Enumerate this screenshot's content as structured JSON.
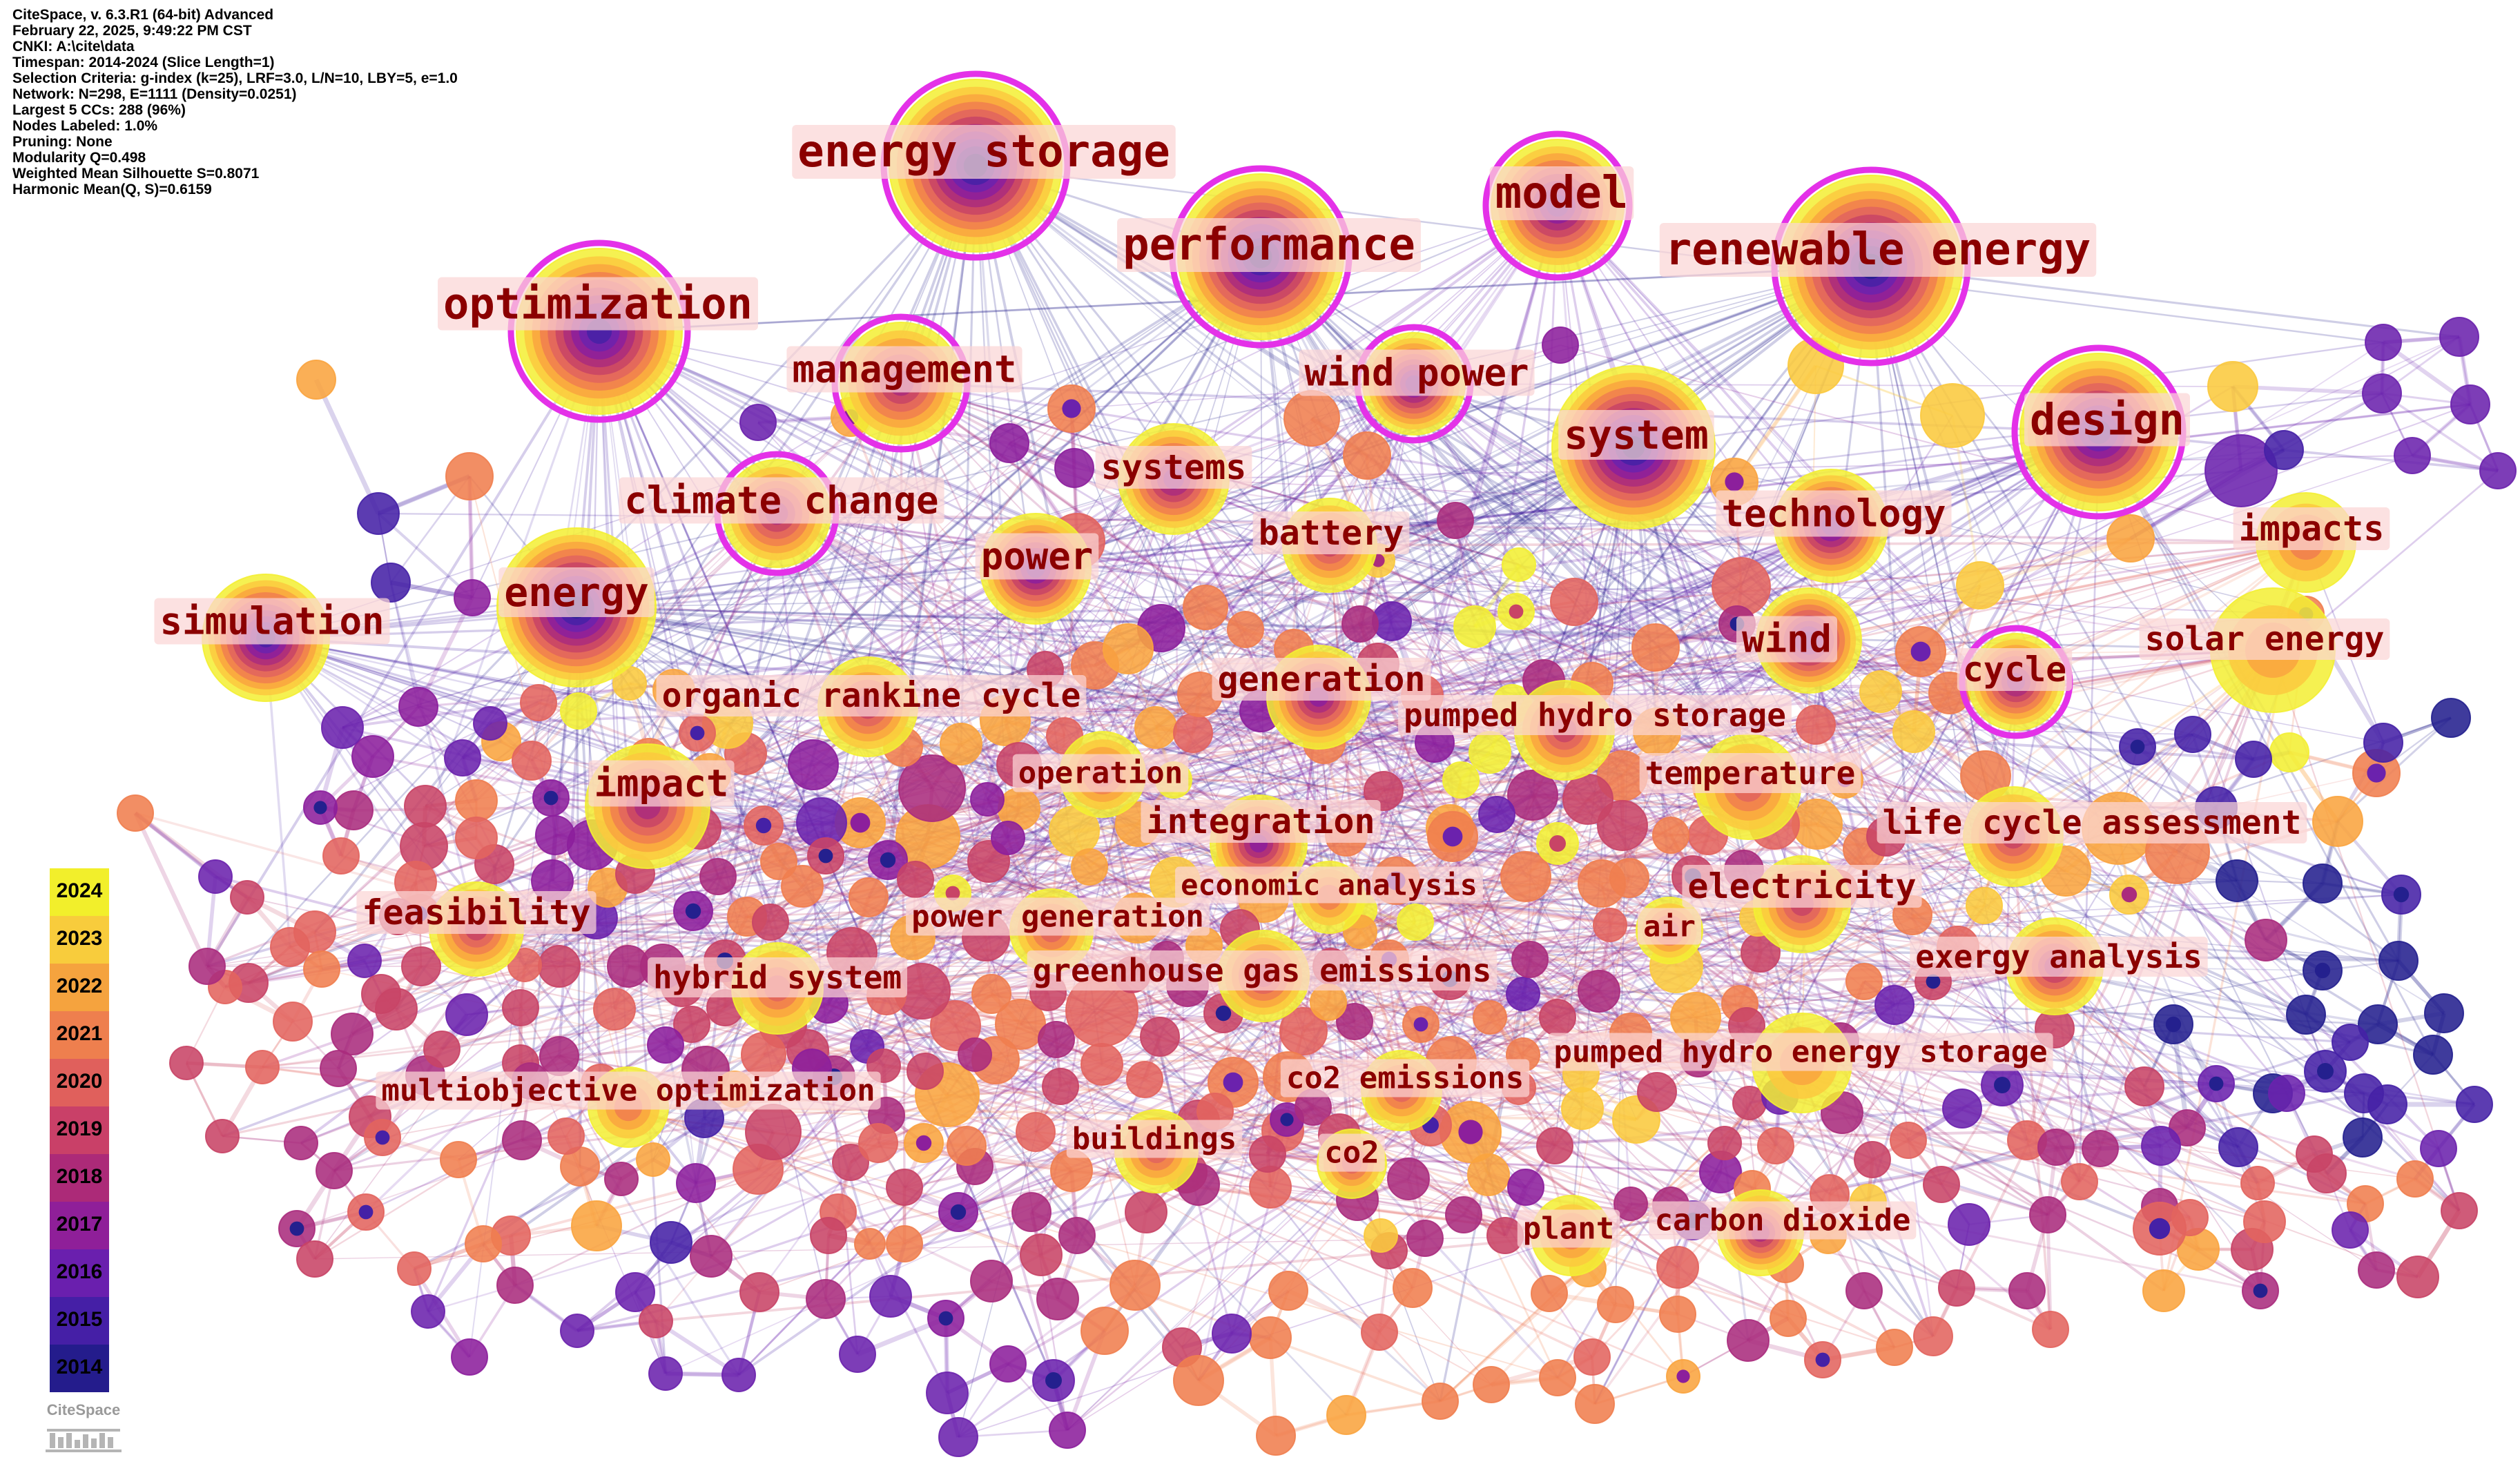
{
  "info_lines": [
    "CiteSpace, v. 6.3.R1 (64-bit) Advanced",
    "February 22, 2025, 9:49:22 PM CST",
    "CNKI: A:\\cite\\data",
    "Timespan: 2014-2024 (Slice Length=1)",
    "Selection Criteria: g-index (k=25), LRF=3.0, L/N=10, LBY=5, e=1.0",
    "Network: N=298, E=1111 (Density=0.0251)",
    "Largest 5 CCs: 288 (96%)",
    "Nodes Labeled: 1.0%",
    "Pruning: None",
    "Modularity Q=0.498",
    "Weighted Mean Silhouette S=0.8071",
    "Harmonic Mean(Q, S)=0.6159"
  ],
  "legend": {
    "years": [
      "2024",
      "2023",
      "2022",
      "2021",
      "2020",
      "2019",
      "2018",
      "2017",
      "2016",
      "2015",
      "2014"
    ],
    "colors": [
      "#f2ef2b",
      "#f8cc3c",
      "#f5a33e",
      "#ee7f4e",
      "#e0605c",
      "#c94068",
      "#ac2a78",
      "#8f1f99",
      "#6a1fae",
      "#451fa6",
      "#241c8c"
    ]
  },
  "logo_text": "CiteSpace",
  "network": {
    "keywords": [
      {
        "term": "energy storage",
        "year": 2014,
        "freq": 100,
        "burst": true
      },
      {
        "term": "performance",
        "year": 2014,
        "freq": 90,
        "burst": true
      },
      {
        "term": "model",
        "year": 2016,
        "freq": 40,
        "burst": true
      },
      {
        "term": "renewable energy",
        "year": 2014,
        "freq": 95,
        "burst": true
      },
      {
        "term": "optimization",
        "year": 2015,
        "freq": 80,
        "burst": true
      },
      {
        "term": "management",
        "year": 2018,
        "freq": 45,
        "burst": true
      },
      {
        "term": "wind power",
        "year": 2016,
        "freq": 30,
        "burst": true
      },
      {
        "term": "system",
        "year": 2014,
        "freq": 80,
        "burst": false
      },
      {
        "term": "design",
        "year": 2015,
        "freq": 75,
        "burst": true
      },
      {
        "term": "systems",
        "year": 2017,
        "freq": 40,
        "burst": false
      },
      {
        "term": "climate change",
        "year": 2018,
        "freq": 40,
        "burst": true
      },
      {
        "term": "technology",
        "year": 2016,
        "freq": 50,
        "burst": false
      },
      {
        "term": "battery",
        "year": 2019,
        "freq": 30,
        "burst": false
      },
      {
        "term": "power",
        "year": 2016,
        "freq": 45,
        "burst": false
      },
      {
        "term": "impacts",
        "year": 2021,
        "freq": 25,
        "burst": false
      },
      {
        "term": "energy",
        "year": 2014,
        "freq": 75,
        "burst": false
      },
      {
        "term": "simulation",
        "year": 2015,
        "freq": 60,
        "burst": false
      },
      {
        "term": "wind",
        "year": 2016,
        "freq": 35,
        "burst": false
      },
      {
        "term": "solar energy",
        "year": 2022,
        "freq": 40,
        "burst": false
      },
      {
        "term": "cycle",
        "year": 2017,
        "freq": 25,
        "burst": true
      },
      {
        "term": "generation",
        "year": 2017,
        "freq": 40,
        "burst": false
      },
      {
        "term": "organic rankine cycle",
        "year": 2019,
        "freq": 35,
        "burst": false
      },
      {
        "term": "pumped hydro storage",
        "year": 2019,
        "freq": 35,
        "burst": false
      },
      {
        "term": "impact",
        "year": 2018,
        "freq": 50,
        "burst": false
      },
      {
        "term": "operation",
        "year": 2020,
        "freq": 30,
        "burst": false
      },
      {
        "term": "temperature",
        "year": 2020,
        "freq": 30,
        "burst": false
      },
      {
        "term": "integration",
        "year": 2017,
        "freq": 30,
        "burst": false
      },
      {
        "term": "life cycle assessment",
        "year": 2019,
        "freq": 30,
        "burst": false
      },
      {
        "term": "economic analysis",
        "year": 2021,
        "freq": 15,
        "burst": false
      },
      {
        "term": "electricity",
        "year": 2019,
        "freq": 30,
        "burst": false
      },
      {
        "term": "feasibility",
        "year": 2019,
        "freq": 30,
        "burst": false
      },
      {
        "term": "power generation",
        "year": 2020,
        "freq": 20,
        "burst": false
      },
      {
        "term": "air",
        "year": 2020,
        "freq": 15,
        "burst": false
      },
      {
        "term": "hybrid system",
        "year": 2020,
        "freq": 20,
        "burst": false
      },
      {
        "term": "greenhouse gas emissions",
        "year": 2019,
        "freq": 30,
        "burst": false
      },
      {
        "term": "exergy analysis",
        "year": 2018,
        "freq": 25,
        "burst": false
      },
      {
        "term": "pumped hydro energy storage",
        "year": 2022,
        "freq": 30,
        "burst": false
      },
      {
        "term": "co2 emissions",
        "year": 2020,
        "freq": 20,
        "burst": false
      },
      {
        "term": "multiobjective optimization",
        "year": 2021,
        "freq": 20,
        "burst": false
      },
      {
        "term": "buildings",
        "year": 2020,
        "freq": 25,
        "burst": false
      },
      {
        "term": "co2",
        "year": 2020,
        "freq": 15,
        "burst": false
      },
      {
        "term": "plant",
        "year": 2021,
        "freq": 20,
        "burst": false
      },
      {
        "term": "carbon dioxide",
        "year": 2018,
        "freq": 25,
        "burst": false
      }
    ]
  }
}
